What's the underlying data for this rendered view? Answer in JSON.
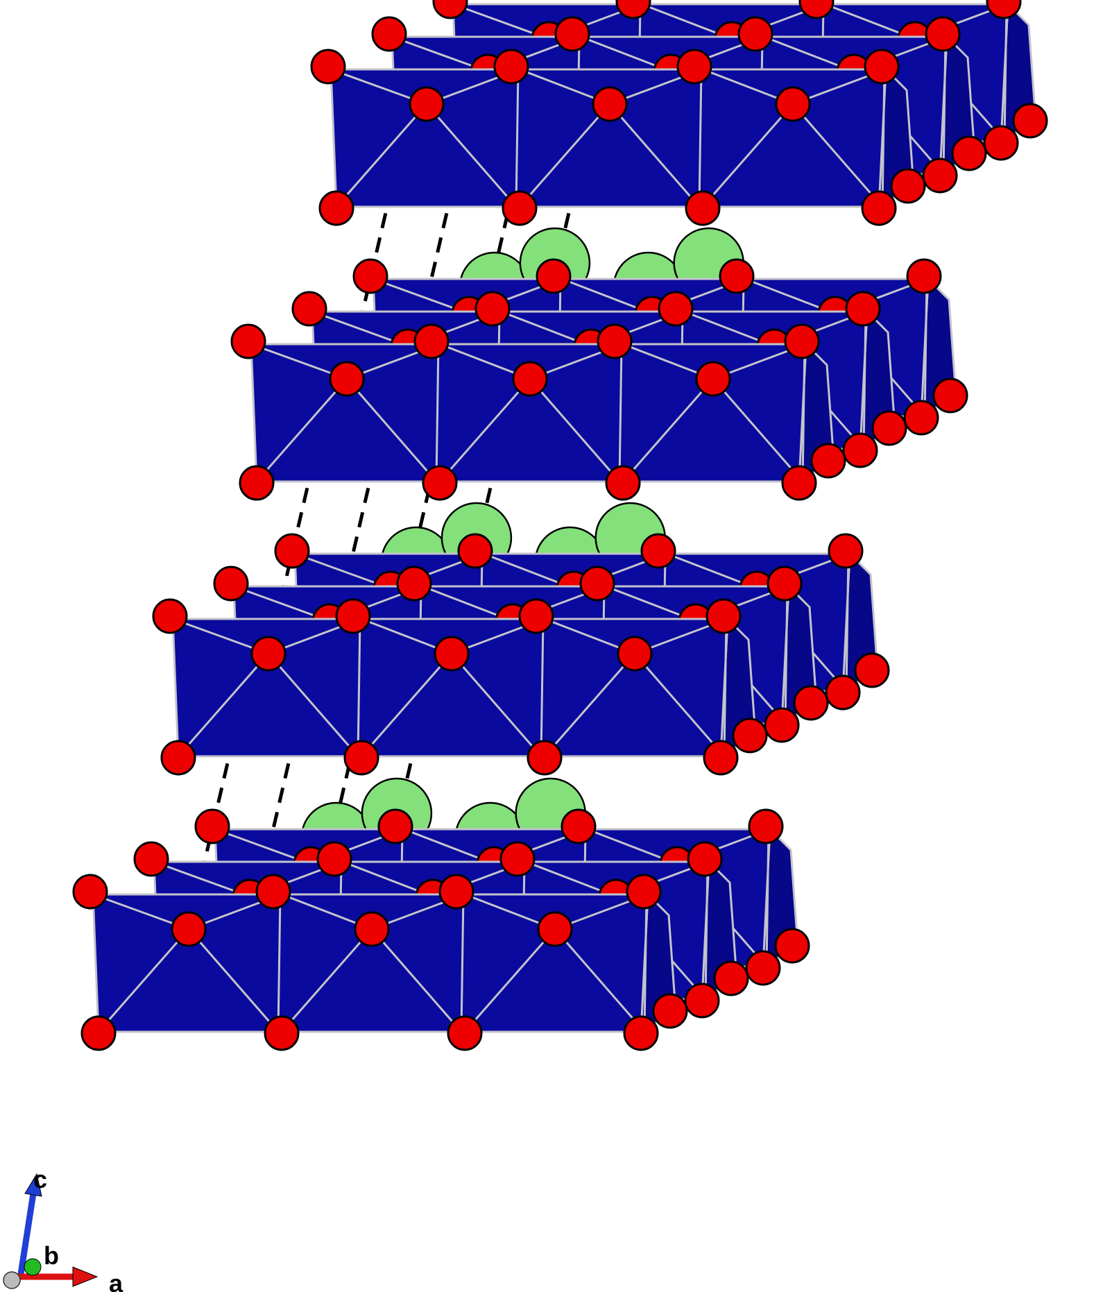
{
  "figure": {
    "colors": {
      "background": "#ffffff",
      "octahedron_front": "#0a0a9e",
      "octahedron_side": "#07078a",
      "edge": "#c4c4cc",
      "oxygen": "#ee0000",
      "cation": "#84e07a",
      "outline": "#000000",
      "bond": "#000000"
    },
    "layers": 4,
    "octahedra_per_row": 3,
    "rows_per_layer": 3,
    "atoms": {
      "oxygen": "red-sphere",
      "cation": "green-sphere",
      "octahedron": "blue-octahedron"
    }
  },
  "axes": {
    "labels": {
      "a": "a",
      "b": "b",
      "c": "c"
    },
    "colors": {
      "a": "#dd1111",
      "b": "#22bb22",
      "c": "#1f3fd6",
      "origin": "#bbbbbb"
    }
  }
}
